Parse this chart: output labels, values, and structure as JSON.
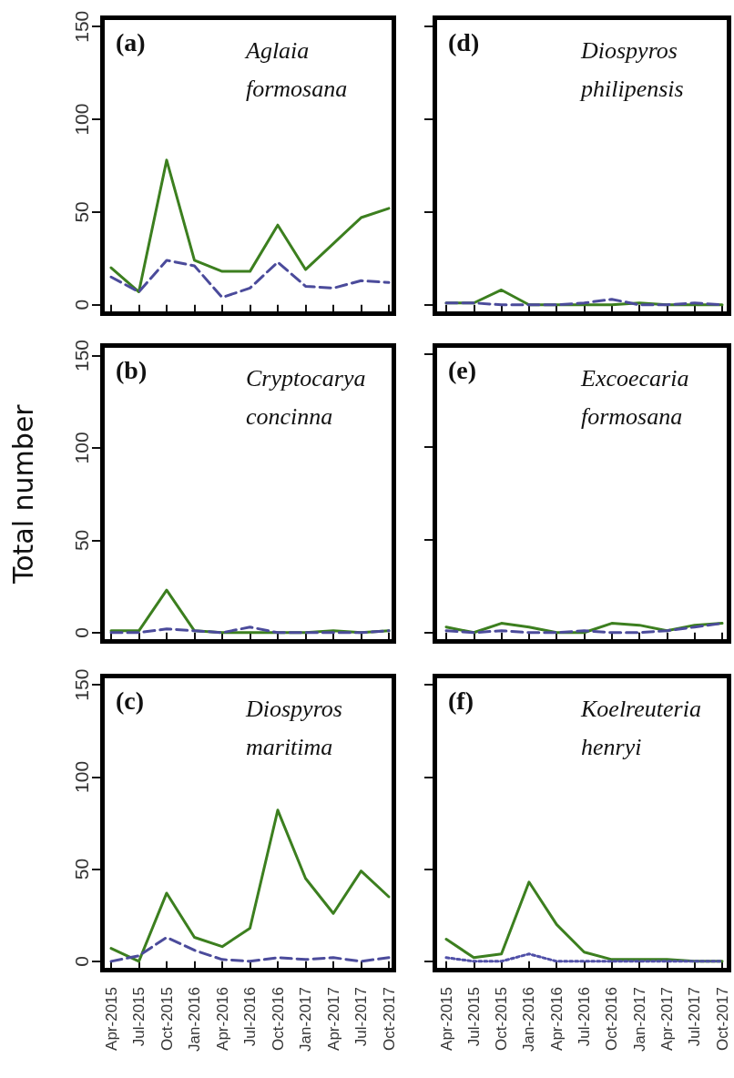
{
  "chart_data": [
    {
      "type": "line",
      "title": "(a)",
      "subtitle": "Aglaia formosana",
      "categories": [
        "Apr-2015",
        "Jul-2015",
        "Oct-2015",
        "Jan-2016",
        "Apr-2016",
        "Jul-2016",
        "Oct-2016",
        "Jan-2017",
        "Apr-2017",
        "Jul-2017",
        "Oct-2017"
      ],
      "ylim": [
        -6,
        156
      ],
      "yticks": [
        0,
        50,
        100,
        150
      ],
      "tick_labels": "y",
      "series": [
        {
          "color": "#3c7f1f",
          "line_style": "solid",
          "values": [
            20,
            7,
            78,
            24,
            18,
            18,
            43,
            19,
            33,
            47,
            52
          ]
        },
        {
          "color": "#4b4b9b",
          "line_style": "dashed",
          "values": [
            15,
            7,
            24,
            21,
            4,
            9,
            23,
            10,
            9,
            13,
            12
          ]
        }
      ]
    },
    {
      "type": "line",
      "title": "(d)",
      "subtitle": "Diospyros philipensis",
      "categories": [
        "Apr-2015",
        "Jul-2015",
        "Oct-2015",
        "Jan-2016",
        "Apr-2016",
        "Jul-2016",
        "Oct-2016",
        "Jan-2017",
        "Apr-2017",
        "Jul-2017",
        "Oct-2017"
      ],
      "ylim": [
        -6,
        156
      ],
      "yticks": [
        0,
        50,
        100,
        150
      ],
      "tick_labels": false,
      "series": [
        {
          "color": "#3c7f1f",
          "line_style": "solid",
          "values": [
            1,
            1,
            8,
            0,
            0,
            0,
            0,
            1,
            0,
            0,
            0
          ]
        },
        {
          "color": "#4b4b9b",
          "line_style": "dashed",
          "values": [
            1,
            1,
            0,
            0,
            0,
            1,
            3,
            0,
            0,
            1,
            0
          ]
        }
      ]
    },
    {
      "type": "line",
      "title": "(b)",
      "subtitle": "Cryptocarya concinna",
      "ylabel": "Total number",
      "categories": [
        "Apr-2015",
        "Jul-2015",
        "Oct-2015",
        "Jan-2016",
        "Apr-2016",
        "Jul-2016",
        "Oct-2016",
        "Jan-2017",
        "Apr-2017",
        "Jul-2017",
        "Oct-2017"
      ],
      "ylim": [
        -6,
        156
      ],
      "yticks": [
        0,
        50,
        100,
        150
      ],
      "tick_labels": "y",
      "series": [
        {
          "color": "#3c7f1f",
          "line_style": "solid",
          "values": [
            1,
            1,
            23,
            1,
            0,
            0,
            0,
            0,
            1,
            0,
            1
          ]
        },
        {
          "color": "#4b4b9b",
          "line_style": "dashed",
          "values": [
            0,
            0,
            2,
            1,
            0,
            3,
            0,
            0,
            0,
            0,
            1
          ]
        }
      ]
    },
    {
      "type": "line",
      "title": "(e)",
      "subtitle": "Excoecaria formosana",
      "categories": [
        "Apr-2015",
        "Jul-2015",
        "Oct-2015",
        "Jan-2016",
        "Apr-2016",
        "Jul-2016",
        "Oct-2016",
        "Jan-2017",
        "Apr-2017",
        "Jul-2017",
        "Oct-2017"
      ],
      "ylim": [
        -6,
        156
      ],
      "yticks": [
        0,
        50,
        100,
        150
      ],
      "tick_labels": false,
      "series": [
        {
          "color": "#3c7f1f",
          "line_style": "solid",
          "values": [
            3,
            0,
            5,
            3,
            0,
            0,
            5,
            4,
            1,
            4,
            5
          ]
        },
        {
          "color": "#4b4b9b",
          "line_style": "dashed",
          "values": [
            1,
            0,
            1,
            0,
            0,
            1,
            0,
            0,
            1,
            3,
            5
          ]
        }
      ]
    },
    {
      "type": "line",
      "title": "(c)",
      "subtitle": "Diospyros maritima",
      "categories": [
        "Apr-2015",
        "Jul-2015",
        "Oct-2015",
        "Jan-2016",
        "Apr-2016",
        "Jul-2016",
        "Oct-2016",
        "Jan-2017",
        "Apr-2017",
        "Jul-2017",
        "Oct-2017"
      ],
      "ylim": [
        -6,
        156
      ],
      "yticks": [
        0,
        50,
        100,
        150
      ],
      "series": [
        {
          "color": "#3c7f1f",
          "line_style": "solid",
          "values": [
            7,
            0,
            37,
            13,
            8,
            18,
            82,
            45,
            26,
            49,
            35
          ]
        },
        {
          "color": "#4b4b9b",
          "line_style": "dashed",
          "values": [
            0,
            3,
            13,
            6,
            1,
            0,
            2,
            1,
            2,
            0,
            2
          ]
        }
      ]
    },
    {
      "type": "line",
      "title": "(f)",
      "subtitle": "Koelreuteria henryi",
      "categories": [
        "Apr-2015",
        "Jul-2015",
        "Oct-2015",
        "Jan-2016",
        "Apr-2016",
        "Jul-2016",
        "Oct-2016",
        "Jan-2017",
        "Apr-2017",
        "Jul-2017",
        "Oct-2017"
      ],
      "ylim": [
        -6,
        156
      ],
      "yticks": [
        0,
        50,
        100,
        150
      ],
      "tick_labels": "x",
      "series": [
        {
          "color": "#3c7f1f",
          "line_style": "solid",
          "values": [
            12,
            2,
            4,
            43,
            20,
            5,
            1,
            1,
            1,
            0,
            0
          ]
        },
        {
          "color": "#5050a8",
          "line_style": "dotted",
          "values": [
            2,
            0,
            0,
            4,
            0,
            0,
            0,
            0,
            0,
            0,
            0
          ]
        }
      ]
    }
  ]
}
